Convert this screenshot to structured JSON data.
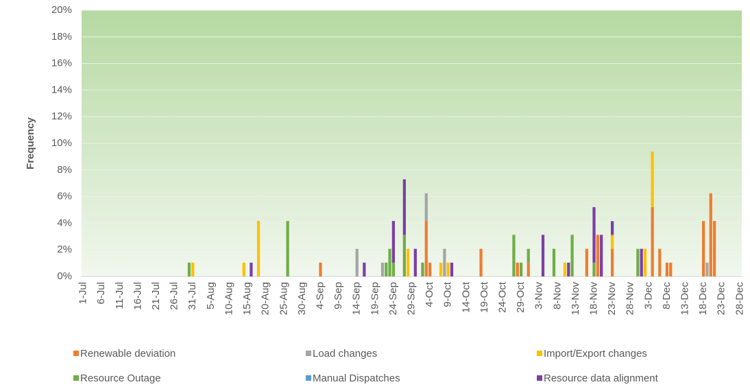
{
  "chart_data": {
    "type": "stacked_bar",
    "y_label": "Frequency",
    "ylim": [
      0,
      20
    ],
    "yticks": [
      {
        "value": 0,
        "label": "0%"
      },
      {
        "value": 2,
        "label": "2%"
      },
      {
        "value": 4,
        "label": "4%"
      },
      {
        "value": 6,
        "label": "6%"
      },
      {
        "value": 8,
        "label": "8%"
      },
      {
        "value": 10,
        "label": "10%"
      },
      {
        "value": 12,
        "label": "12%"
      },
      {
        "value": 14,
        "label": "14%"
      },
      {
        "value": 16,
        "label": "16%"
      },
      {
        "value": 18,
        "label": "18%"
      },
      {
        "value": 20,
        "label": "20%"
      }
    ],
    "grid": true,
    "legend": "bottom",
    "categories": [
      "1-Jul",
      null,
      null,
      null,
      null,
      "6-Jul",
      null,
      null,
      null,
      null,
      "11-Jul",
      null,
      null,
      null,
      null,
      "16-Jul",
      null,
      null,
      null,
      null,
      "21-Jul",
      null,
      null,
      null,
      null,
      "26-Jul",
      null,
      null,
      null,
      null,
      "31-Jul",
      null,
      null,
      null,
      null,
      "5-Aug",
      null,
      null,
      null,
      null,
      "10-Aug",
      null,
      null,
      null,
      null,
      "15-Aug",
      null,
      null,
      null,
      null,
      "20-Aug",
      null,
      null,
      null,
      null,
      "25-Aug",
      null,
      null,
      null,
      null,
      "30-Aug",
      null,
      null,
      null,
      null,
      "4-Sep",
      null,
      null,
      null,
      null,
      "9-Sep",
      null,
      null,
      null,
      null,
      "14-Sep",
      null,
      null,
      null,
      null,
      "19-Sep",
      null,
      null,
      null,
      null,
      "24-Sep",
      null,
      null,
      null,
      null,
      "29-Sep",
      null,
      null,
      null,
      null,
      "4-Oct",
      null,
      null,
      null,
      null,
      "9-Oct",
      null,
      null,
      null,
      null,
      "14-Oct",
      null,
      null,
      null,
      null,
      "19-Oct",
      null,
      null,
      null,
      null,
      "24-Oct",
      null,
      null,
      null,
      null,
      "29-Oct",
      null,
      null,
      null,
      null,
      "3-Nov",
      null,
      null,
      null,
      null,
      "8-Nov",
      null,
      null,
      null,
      null,
      "13-Nov",
      null,
      null,
      null,
      null,
      "18-Nov",
      null,
      null,
      null,
      null,
      "23-Nov",
      null,
      null,
      null,
      null,
      "28-Nov",
      null,
      null,
      null,
      null,
      "3-Dec",
      null,
      null,
      null,
      null,
      "8-Dec",
      null,
      null,
      null,
      null,
      "13-Dec",
      null,
      null,
      null,
      null,
      "18-Dec",
      null,
      null,
      null,
      null,
      "23-Dec",
      null,
      null,
      null,
      null,
      "28-Dec"
    ],
    "series": [
      {
        "name": "Renewable deviation",
        "color": "#ed7d31",
        "values": [
          0,
          0,
          0,
          0,
          0,
          0,
          0,
          0,
          0,
          0,
          0,
          0,
          0,
          0,
          0,
          0,
          0,
          0,
          0,
          0,
          0,
          0,
          0,
          0,
          0,
          0,
          0,
          0,
          0,
          0,
          0,
          0,
          0,
          0,
          0,
          0,
          0,
          0,
          0,
          0,
          0,
          0,
          0,
          0,
          0,
          0,
          0,
          0,
          0,
          0,
          0,
          0,
          0,
          0,
          0,
          0,
          0,
          0,
          0,
          0,
          0,
          0,
          0,
          0,
          0,
          1.04,
          0,
          0,
          0,
          0,
          0,
          0,
          0,
          0,
          0,
          0,
          0,
          0,
          0,
          0,
          0,
          0,
          0,
          0,
          0,
          0,
          0,
          0,
          0,
          0,
          0,
          0,
          0,
          0,
          4.17,
          1.04,
          0,
          0,
          0,
          0,
          0,
          0,
          0,
          0,
          0,
          0,
          0,
          0,
          0,
          2.08,
          0,
          0,
          0,
          0,
          0,
          0,
          0,
          0,
          0,
          1.04,
          0,
          0,
          1.04,
          0,
          0,
          0,
          0,
          0,
          0,
          0,
          0,
          0,
          0,
          0,
          0,
          0,
          0,
          0,
          2.08,
          0,
          0,
          3.13,
          0,
          0,
          0,
          2.08,
          0,
          0,
          0,
          0,
          0,
          0,
          0,
          0,
          0,
          0,
          5.21,
          0,
          2.08,
          0,
          1.04,
          1.04,
          0,
          0,
          0,
          0,
          0,
          0,
          0,
          0,
          4.17,
          0,
          6.25,
          4.17,
          0,
          0,
          0,
          0,
          0,
          0,
          0
        ]
      },
      {
        "name": "Load changes",
        "color": "#a5a5a5",
        "values": [
          0,
          0,
          0,
          0,
          0,
          0,
          0,
          0,
          0,
          0,
          0,
          0,
          0,
          0,
          0,
          0,
          0,
          0,
          0,
          0,
          0,
          0,
          0,
          0,
          0,
          0,
          0,
          0,
          0,
          0,
          0,
          0,
          0,
          0,
          0,
          0,
          0,
          0,
          0,
          0,
          0,
          0,
          0,
          0,
          0,
          0,
          0,
          0,
          0,
          0,
          0,
          0,
          0,
          0,
          0,
          0,
          0,
          0,
          0,
          0,
          0,
          0,
          0,
          0,
          0,
          0,
          0,
          0,
          0,
          0,
          0,
          0,
          0,
          0,
          0,
          2.08,
          0,
          0,
          0,
          0,
          0,
          0,
          1.04,
          0,
          0,
          0,
          0,
          0,
          0,
          0,
          0,
          0,
          0,
          0,
          2.08,
          0,
          0,
          0,
          0,
          2.08,
          0,
          0,
          0,
          0,
          0,
          0,
          0,
          0,
          0,
          0,
          0,
          0,
          0,
          0,
          0,
          0,
          0,
          0,
          0,
          0,
          0,
          0,
          0,
          0,
          0,
          0,
          0,
          0,
          0,
          0,
          0,
          0,
          0,
          0,
          0,
          0,
          0,
          0,
          0,
          0,
          0,
          0,
          0,
          0,
          0,
          0,
          0,
          0,
          0,
          0,
          0,
          0,
          0,
          0,
          0,
          0,
          0,
          0,
          0,
          0,
          0,
          0,
          0,
          0,
          0,
          0,
          0,
          0,
          0,
          0,
          0,
          1.04,
          0,
          0,
          0,
          0,
          0,
          0,
          0,
          0,
          0
        ]
      },
      {
        "name": "Import/Export changes",
        "color": "#ffc000",
        "values": [
          0,
          0,
          0,
          0,
          0,
          0,
          0,
          0,
          0,
          0,
          0,
          0,
          0,
          0,
          0,
          0,
          0,
          0,
          0,
          0,
          0,
          0,
          0,
          0,
          0,
          0,
          0,
          0,
          0,
          0,
          1.04,
          0,
          0,
          0,
          0,
          0,
          0,
          0,
          0,
          0,
          0,
          0,
          0,
          0,
          1.04,
          0,
          0,
          0,
          4.17,
          0,
          0,
          0,
          0,
          0,
          0,
          0,
          0,
          0,
          0,
          0,
          0,
          0,
          0,
          0,
          0,
          0,
          0,
          0,
          0,
          0,
          0,
          0,
          0,
          0,
          0,
          0,
          0,
          0,
          0,
          0,
          0,
          0,
          0,
          0,
          0,
          0,
          0,
          0,
          0,
          2.08,
          0,
          0,
          0,
          0,
          0,
          0,
          0,
          0,
          1.04,
          0,
          1.04,
          0,
          0,
          0,
          0,
          0,
          0,
          0,
          0,
          0,
          0,
          0,
          0,
          0,
          0,
          0,
          0,
          0,
          0,
          0,
          0,
          0,
          0,
          0,
          0,
          0,
          0,
          0,
          0,
          0,
          0,
          0,
          1.04,
          0,
          0,
          0,
          0,
          0,
          0,
          0,
          0,
          0,
          0,
          0,
          0,
          1.04,
          0,
          0,
          0,
          0,
          0,
          0,
          0,
          0,
          2.08,
          0,
          4.17,
          0,
          0,
          0,
          0,
          0,
          0,
          0,
          0,
          0,
          0,
          0,
          0,
          0,
          0,
          0,
          0,
          0,
          0,
          0,
          0,
          0,
          0,
          0,
          0
        ]
      },
      {
        "name": "Resource Outage",
        "color": "#70ad47",
        "values": [
          0,
          0,
          0,
          0,
          0,
          0,
          0,
          0,
          0,
          0,
          0,
          0,
          0,
          0,
          0,
          0,
          0,
          0,
          0,
          0,
          0,
          0,
          0,
          0,
          0,
          0,
          0,
          0,
          0,
          1.04,
          0,
          0,
          0,
          0,
          0,
          0,
          0,
          0,
          0,
          0,
          0,
          0,
          0,
          0,
          0,
          0,
          0,
          0,
          0,
          0,
          0,
          0,
          0,
          0,
          0,
          0,
          4.17,
          0,
          0,
          0,
          0,
          0,
          0,
          0,
          0,
          0,
          0,
          0,
          0,
          0,
          0,
          0,
          0,
          0,
          0,
          0,
          0,
          0,
          0,
          0,
          0,
          0,
          0,
          1.04,
          2.08,
          1.04,
          0,
          0,
          3.13,
          0,
          0,
          0,
          0,
          1.04,
          0,
          0,
          0,
          0,
          0,
          0,
          0,
          0,
          0,
          0,
          0,
          0,
          0,
          0,
          0,
          0,
          0,
          0,
          0,
          0,
          0,
          0,
          0,
          0,
          3.13,
          0,
          1.04,
          0,
          1.04,
          0,
          0,
          0,
          0,
          0,
          0,
          2.08,
          0,
          0,
          0,
          0,
          3.13,
          0,
          0,
          0,
          0,
          0,
          1.04,
          0,
          0,
          0,
          0,
          0,
          0,
          0,
          0,
          0,
          0,
          0,
          2.08,
          0,
          0,
          0,
          0,
          0,
          0,
          0,
          0,
          0,
          0,
          0,
          0,
          0,
          0,
          0,
          0,
          0,
          0,
          0,
          0,
          0,
          0,
          0,
          0,
          0,
          0,
          0,
          0
        ]
      },
      {
        "name": "Manual Dispatches",
        "color": "#5b9bd5",
        "values": [
          0,
          0,
          0,
          0,
          0,
          0,
          0,
          0,
          0,
          0,
          0,
          0,
          0,
          0,
          0,
          0,
          0,
          0,
          0,
          0,
          0,
          0,
          0,
          0,
          0,
          0,
          0,
          0,
          0,
          0,
          0,
          0,
          0,
          0,
          0,
          0,
          0,
          0,
          0,
          0,
          0,
          0,
          0,
          0,
          0,
          0,
          0,
          0,
          0,
          0,
          0,
          0,
          0,
          0,
          0,
          0,
          0,
          0,
          0,
          0,
          0,
          0,
          0,
          0,
          0,
          0,
          0,
          0,
          0,
          0,
          0,
          0,
          0,
          0,
          0,
          0,
          0,
          0,
          0,
          0,
          0,
          0,
          0,
          0,
          0,
          0,
          0,
          0,
          0,
          0,
          0,
          0,
          0,
          0,
          0,
          0,
          0,
          0,
          0,
          0,
          0,
          0,
          0,
          0,
          0,
          0,
          0,
          0,
          0,
          0,
          0,
          0,
          0,
          0,
          0,
          0,
          0,
          0,
          0,
          0,
          0,
          0,
          0,
          0,
          0,
          0,
          0,
          0,
          0,
          0,
          0,
          0,
          0,
          0,
          0,
          0,
          0,
          0,
          0,
          0,
          0,
          0,
          0,
          0,
          0,
          0,
          0,
          0,
          0,
          0,
          0,
          0,
          0,
          0,
          0,
          0,
          0,
          0,
          0,
          0,
          0,
          0,
          0,
          0,
          0,
          0,
          0,
          0,
          0,
          0,
          0,
          0,
          0,
          0,
          0,
          0,
          0,
          0,
          0,
          0,
          0
        ]
      },
      {
        "name": "Resource data alignment",
        "color": "#7b3fa6",
        "values": [
          0,
          0,
          0,
          0,
          0,
          0,
          0,
          0,
          0,
          0,
          0,
          0,
          0,
          0,
          0,
          0,
          0,
          0,
          0,
          0,
          0,
          0,
          0,
          0,
          0,
          0,
          0,
          0,
          0,
          0,
          0,
          0,
          0,
          0,
          0,
          0,
          0,
          0,
          0,
          0,
          0,
          0,
          0,
          0,
          0,
          0,
          1.04,
          0,
          0,
          0,
          0,
          0,
          0,
          0,
          0,
          0,
          0,
          0,
          0,
          0,
          0,
          0,
          0,
          0,
          0,
          0,
          0,
          0,
          0,
          0,
          0,
          0,
          0,
          0,
          0,
          0,
          0,
          1.04,
          0,
          0,
          0,
          0,
          0,
          0,
          0,
          3.13,
          0,
          0,
          4.17,
          0,
          0,
          2.08,
          0,
          0,
          0,
          0,
          0,
          0,
          0,
          0,
          0,
          1.04,
          0,
          0,
          0,
          0,
          0,
          0,
          0,
          0,
          0,
          0,
          0,
          0,
          0,
          0,
          0,
          0,
          0,
          0,
          0,
          0,
          0,
          0,
          0,
          0,
          3.13,
          0,
          0,
          0,
          0,
          0,
          0,
          1.04,
          0,
          0,
          0,
          0,
          0,
          0,
          4.17,
          0,
          3.13,
          0,
          0,
          1.04,
          0,
          0,
          0,
          0,
          0,
          0,
          0,
          2.08,
          0,
          0,
          0,
          0,
          0,
          0,
          0,
          0,
          0,
          0,
          0,
          0,
          0,
          0,
          0,
          0,
          0,
          0,
          0,
          0,
          0,
          0,
          0,
          0,
          0,
          0,
          0
        ]
      }
    ]
  }
}
